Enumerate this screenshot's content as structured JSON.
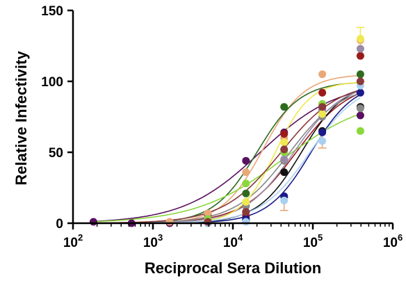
{
  "chart_data": {
    "type": "line",
    "title": "",
    "xlabel": "Reciprocal Sera Dilution",
    "ylabel": "Relative Infectivity",
    "x_scale": "log",
    "xlim": [
      100,
      1000000
    ],
    "ylim": [
      0,
      150
    ],
    "x_ticks": [
      100,
      1000,
      10000,
      100000,
      1000000
    ],
    "x_tick_labels": [
      {
        "base": "10",
        "exp": "2"
      },
      {
        "base": "10",
        "exp": "3"
      },
      {
        "base": "10",
        "exp": "4"
      },
      {
        "base": "10",
        "exp": "5"
      },
      {
        "base": "10",
        "exp": "6"
      }
    ],
    "y_ticks": [
      0,
      50,
      100,
      150
    ],
    "y_tick_labels": [
      "0",
      "50",
      "100",
      "150"
    ],
    "grid": false,
    "legend": "none",
    "dilutions": [
      180,
      540,
      1620,
      4860,
      14580,
      43740,
      131220,
      393660
    ],
    "series": [
      {
        "color": "#5a1060",
        "ic50": 22000,
        "hill": 0.9,
        "top": 100,
        "values": [
          1,
          0,
          0,
          6,
          44,
          64,
          80,
          76
        ]
      },
      {
        "color": "#e8a878",
        "ic50": 24000,
        "hill": 1.7,
        "top": 105,
        "values": [
          null,
          null,
          1,
          7,
          36,
          60,
          105,
          129
        ]
      },
      {
        "color": "#2e6b1e",
        "ic50": 20000,
        "hill": 1.6,
        "top": 100,
        "values": [
          null,
          null,
          null,
          2,
          21,
          82,
          84,
          105
        ]
      },
      {
        "color": "#9a1a1a",
        "ic50": 62000,
        "hill": 1.3,
        "top": 100,
        "values": [
          null,
          null,
          null,
          1,
          5,
          63,
          92,
          118
        ]
      },
      {
        "color": "#111111",
        "ic50": 72000,
        "hill": 1.6,
        "top": 100,
        "values": [
          null,
          null,
          null,
          0,
          2,
          36,
          65,
          82
        ]
      },
      {
        "color": "#8ad83a",
        "ic50": 42000,
        "hill": 0.8,
        "top": 90,
        "values": [
          null,
          null,
          null,
          3,
          28,
          50,
          84,
          65
        ]
      },
      {
        "color": "#1a1a8a",
        "ic50": 95000,
        "hill": 1.6,
        "top": 100,
        "values": [
          null,
          null,
          null,
          0,
          3,
          19,
          64,
          92
        ]
      },
      {
        "color": "#888888",
        "ic50": 50000,
        "hill": 1.3,
        "top": 98,
        "values": [
          null,
          null,
          null,
          1,
          12,
          44,
          75,
          81
        ]
      },
      {
        "color": "#9a8aa8",
        "ic50": 58000,
        "hill": 1.4,
        "top": 100,
        "values": [
          null,
          null,
          null,
          1,
          8,
          45,
          80,
          123
        ]
      },
      {
        "color": "#f0e850",
        "ic50": 34000,
        "hill": 2.0,
        "top": 100,
        "values": [
          null,
          null,
          null,
          1,
          15,
          57,
          77,
          130
        ]
      },
      {
        "color": "#aad0f0",
        "ic50": 92000,
        "hill": 1.4,
        "top": 100,
        "values": [
          null,
          null,
          null,
          0,
          1,
          16,
          58,
          97
        ]
      },
      {
        "color": "#8a3a3a",
        "ic50": 40000,
        "hill": 1.2,
        "top": 100,
        "values": [
          null,
          null,
          null,
          1,
          8,
          52,
          82,
          100
        ]
      }
    ],
    "error_bars": [
      {
        "x": 393660,
        "y": 128,
        "low": 118,
        "high": 138,
        "color": "#f0e850"
      },
      {
        "x": 131220,
        "y": 60,
        "low": 53,
        "high": 66,
        "color": "#e8a878"
      },
      {
        "x": 43740,
        "y": 13,
        "low": 9,
        "high": 18,
        "color": "#e8a878"
      }
    ]
  }
}
